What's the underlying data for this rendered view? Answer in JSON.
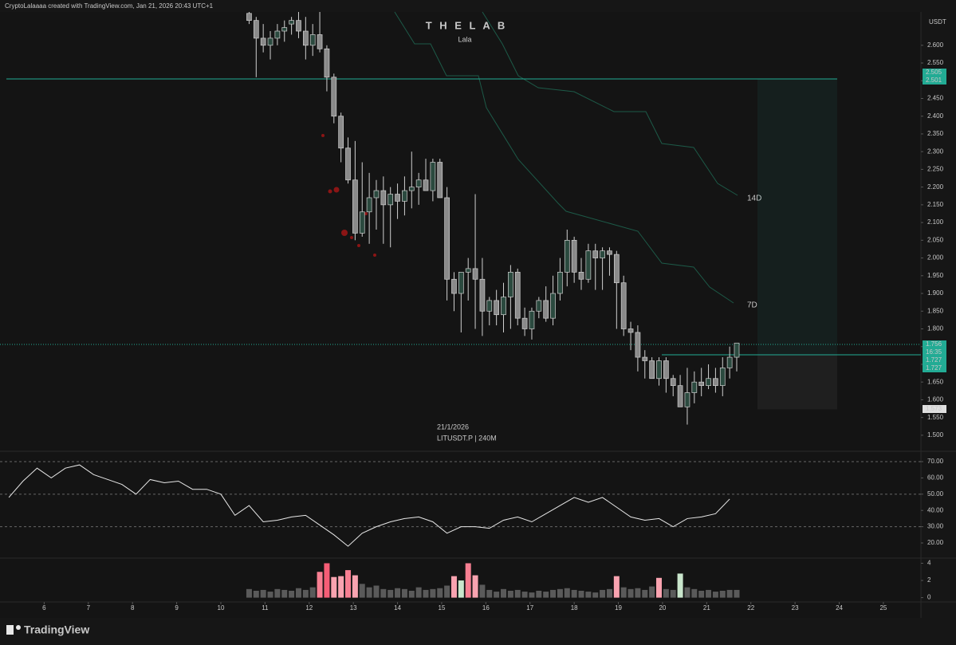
{
  "header": {
    "text": "CryptoLalaaaa created with TradingView.com, Jan 21, 2026 20:43 UTC+1"
  },
  "watermark": {
    "title": "T H E  L A B",
    "subtitle": "Lala"
  },
  "info": {
    "date": "21/1/2026",
    "symbol": "LITUSDT.P | 240M"
  },
  "footer": {
    "brand": "TradingView"
  },
  "drawings": {
    "long_label": "14D",
    "short_label": "7D",
    "countdown": "16:35"
  },
  "chart_data": [
    {
      "type": "candlestick",
      "currency": "USDT",
      "xlim": [
        5.0,
        25.85
      ],
      "ylim": [
        1.457,
        2.694
      ],
      "xticks": [
        6,
        7,
        8,
        9,
        10,
        11,
        12,
        13,
        14,
        15,
        16,
        17,
        18,
        19,
        20,
        21,
        22,
        23,
        24,
        25
      ],
      "yticks": [
        {
          "value": 1.5,
          "label": "1.500"
        },
        {
          "value": 1.55,
          "label": "1.550"
        },
        {
          "value": 1.6,
          "label": "1.600"
        },
        {
          "value": 1.65,
          "label": "1.650"
        },
        {
          "value": 1.7,
          "label": "1.700"
        },
        {
          "value": 1.75,
          "label": "1.750"
        },
        {
          "value": 1.8,
          "label": "1.800"
        },
        {
          "value": 1.85,
          "label": "1.850"
        },
        {
          "value": 1.9,
          "label": "1.900"
        },
        {
          "value": 1.95,
          "label": "1.950"
        },
        {
          "value": 2.0,
          "label": "2.000"
        },
        {
          "value": 2.05,
          "label": "2.050"
        },
        {
          "value": 2.1,
          "label": "2.100"
        },
        {
          "value": 2.15,
          "label": "2.150"
        },
        {
          "value": 2.2,
          "label": "2.200"
        },
        {
          "value": 2.25,
          "label": "2.250"
        },
        {
          "value": 2.3,
          "label": "2.300"
        },
        {
          "value": 2.35,
          "label": "2.350"
        },
        {
          "value": 2.4,
          "label": "2.400"
        },
        {
          "value": 2.45,
          "label": "2.450"
        },
        {
          "value": 2.5,
          "label": "2.500"
        },
        {
          "value": 2.55,
          "label": "2.550"
        },
        {
          "value": 2.6,
          "label": "2.600"
        }
      ],
      "up_color": "#2b4a3f",
      "down_color": "#8a8a8a",
      "wick_color": "#cfcfcf",
      "x": [
        10.64,
        10.8,
        10.96,
        11.12,
        11.28,
        11.44,
        11.6,
        11.76,
        11.92,
        12.08,
        12.24,
        12.4,
        12.56,
        12.72,
        12.88,
        13.04,
        13.2,
        13.36,
        13.52,
        13.68,
        13.84,
        14,
        14.16,
        14.32,
        14.48,
        14.64,
        14.8,
        14.96,
        15.12,
        15.28,
        15.44,
        15.6,
        15.76,
        15.92,
        16.08,
        16.24,
        16.4,
        16.56,
        16.72,
        16.88,
        17.04,
        17.2,
        17.36,
        17.52,
        17.68,
        17.84,
        18,
        18.16,
        18.32,
        18.48,
        18.64,
        18.8,
        18.96,
        19.12,
        19.28,
        19.44,
        19.6,
        19.76,
        19.92,
        20.08,
        20.24,
        20.4,
        20.56,
        20.72,
        20.88,
        21.04,
        21.2,
        21.36,
        21.52,
        21.68
      ],
      "open": [
        2.69,
        2.67,
        2.62,
        2.6,
        2.62,
        2.64,
        2.66,
        2.67,
        2.64,
        2.6,
        2.63,
        2.59,
        2.51,
        2.4,
        2.31,
        2.22,
        2.07,
        2.13,
        2.17,
        2.19,
        2.15,
        2.18,
        2.16,
        2.19,
        2.2,
        2.22,
        2.19,
        2.27,
        2.17,
        1.94,
        1.9,
        1.96,
        1.97,
        1.94,
        1.85,
        1.88,
        1.84,
        1.89,
        1.96,
        1.83,
        1.8,
        1.85,
        1.88,
        1.83,
        1.9,
        1.96,
        2.05,
        1.96,
        1.94,
        2.02,
        2.0,
        2.02,
        2.01,
        1.93,
        1.8,
        1.79,
        1.72,
        1.71,
        1.66,
        1.71,
        1.66,
        1.64,
        1.58,
        1.62,
        1.65,
        1.64,
        1.66,
        1.64,
        1.69,
        1.72
      ],
      "high": [
        2.7,
        2.68,
        2.66,
        2.64,
        2.66,
        2.67,
        2.68,
        2.7,
        2.68,
        2.66,
        2.7,
        2.6,
        2.52,
        2.41,
        2.34,
        2.33,
        2.27,
        2.24,
        2.22,
        2.23,
        2.2,
        2.21,
        2.23,
        2.3,
        2.24,
        2.28,
        2.28,
        2.28,
        2.2,
        1.96,
        1.96,
        2.0,
        2.18,
        2.0,
        1.89,
        1.91,
        1.93,
        1.98,
        1.97,
        1.86,
        1.86,
        1.89,
        1.92,
        1.95,
        2.0,
        2.08,
        2.06,
        2.0,
        2.04,
        2.04,
        2.03,
        2.03,
        2.02,
        1.95,
        1.82,
        1.81,
        1.74,
        1.72,
        1.72,
        1.72,
        1.67,
        1.67,
        1.69,
        1.68,
        1.69,
        1.7,
        1.69,
        1.72,
        1.75,
        1.76
      ],
      "low": [
        2.66,
        2.51,
        2.58,
        2.56,
        2.6,
        2.61,
        2.63,
        2.62,
        2.56,
        2.57,
        2.58,
        2.47,
        2.38,
        2.27,
        2.21,
        2.05,
        2.06,
        2.04,
        2.08,
        2.04,
        2.03,
        2.11,
        2.12,
        2.14,
        2.15,
        2.19,
        2.16,
        2.17,
        1.88,
        1.85,
        1.79,
        1.88,
        1.8,
        1.78,
        1.81,
        1.81,
        1.79,
        1.8,
        1.81,
        1.78,
        1.77,
        1.83,
        1.82,
        1.81,
        1.88,
        1.92,
        1.93,
        1.91,
        1.93,
        1.91,
        1.91,
        1.95,
        1.8,
        1.78,
        1.74,
        1.68,
        1.66,
        1.66,
        1.64,
        1.62,
        1.61,
        1.58,
        1.53,
        1.59,
        1.61,
        1.63,
        1.62,
        1.61,
        1.66,
        1.68
      ],
      "close": [
        2.67,
        2.62,
        2.6,
        2.62,
        2.64,
        2.65,
        2.67,
        2.64,
        2.6,
        2.63,
        2.59,
        2.51,
        2.4,
        2.31,
        2.22,
        2.07,
        2.13,
        2.17,
        2.19,
        2.15,
        2.18,
        2.16,
        2.19,
        2.2,
        2.22,
        2.19,
        2.27,
        2.17,
        1.94,
        1.9,
        1.96,
        1.97,
        1.94,
        1.85,
        1.88,
        1.84,
        1.89,
        1.96,
        1.83,
        1.8,
        1.85,
        1.88,
        1.83,
        1.9,
        1.96,
        2.05,
        1.96,
        1.94,
        2.02,
        2.0,
        2.02,
        2.01,
        1.93,
        1.8,
        1.79,
        1.72,
        1.71,
        1.66,
        1.71,
        1.66,
        1.64,
        1.58,
        1.62,
        1.65,
        1.64,
        1.66,
        1.64,
        1.69,
        1.72,
        1.76
      ],
      "price_tags": [
        {
          "value": 2.505,
          "label": "2.505",
          "color": "#22ab94"
        },
        {
          "value": 2.501,
          "label": "2.501",
          "color": "#22ab94"
        },
        {
          "value": 1.756,
          "label": "1.756",
          "color": "#22ab94"
        },
        {
          "value": 1.727,
          "label": "1.727",
          "color": "#22ab94"
        },
        {
          "value": 1.727,
          "label": "1.727",
          "color": "#22ab94"
        },
        {
          "value": 1.573,
          "label": "1.573",
          "color": "#e0e0e0"
        }
      ]
    },
    {
      "type": "line",
      "xlim": [
        5.0,
        25.85
      ],
      "ylim": [
        10.7,
        75.4
      ],
      "yticks": [
        {
          "value": 20,
          "label": "20.00"
        },
        {
          "value": 30,
          "label": "30.00"
        },
        {
          "value": 40,
          "label": "40.00"
        },
        {
          "value": 50,
          "label": "50.00"
        },
        {
          "value": 60,
          "label": "60.00"
        },
        {
          "value": 70,
          "label": "70.00"
        }
      ],
      "bands": [
        30,
        50,
        70
      ],
      "color": "#e8e8e8",
      "x": [
        5.2,
        5.52,
        5.84,
        6.16,
        6.48,
        6.8,
        7.12,
        7.44,
        7.76,
        8.08,
        8.4,
        8.72,
        9.04,
        9.36,
        9.68,
        10,
        10.32,
        10.64,
        10.96,
        11.28,
        11.6,
        11.92,
        12.24,
        12.56,
        12.88,
        13.2,
        13.52,
        13.84,
        14.16,
        14.48,
        14.8,
        15.12,
        15.44,
        15.76,
        16.08,
        16.4,
        16.72,
        17.04,
        17.36,
        17.68,
        18,
        18.32,
        18.64,
        18.96,
        19.28,
        19.6,
        19.92,
        20.24,
        20.56,
        20.88,
        21.2,
        21.52
      ],
      "values": [
        48,
        58,
        66,
        60,
        66,
        68,
        62,
        59,
        56,
        50,
        59,
        57,
        58,
        53,
        53,
        50,
        37,
        43,
        33,
        34,
        36,
        37,
        31,
        25,
        18,
        26,
        30,
        33,
        35,
        36,
        33,
        26,
        30,
        30,
        29,
        34,
        36,
        33,
        38,
        43,
        48,
        45,
        48,
        42,
        36,
        34,
        35,
        30,
        35,
        36,
        38,
        47
      ]
    },
    {
      "type": "bar",
      "xlim": [
        5.0,
        25.85
      ],
      "ylim": [
        -0.5,
        4.6
      ],
      "yticks": [
        0,
        2,
        4
      ],
      "x": [
        10.64,
        10.8,
        10.96,
        11.12,
        11.28,
        11.44,
        11.6,
        11.76,
        11.92,
        12.08,
        12.24,
        12.4,
        12.56,
        12.72,
        12.88,
        13.04,
        13.2,
        13.36,
        13.52,
        13.68,
        13.84,
        14,
        14.16,
        14.32,
        14.48,
        14.64,
        14.8,
        14.96,
        15.12,
        15.28,
        15.44,
        15.6,
        15.76,
        15.92,
        16.08,
        16.24,
        16.4,
        16.56,
        16.72,
        16.88,
        17.04,
        17.2,
        17.36,
        17.52,
        17.68,
        17.84,
        18,
        18.16,
        18.32,
        18.48,
        18.64,
        18.8,
        18.96,
        19.12,
        19.28,
        19.44,
        19.6,
        19.76,
        19.92,
        20.08,
        20.24,
        20.4,
        20.56,
        20.72,
        20.88,
        21.04,
        21.2,
        21.36,
        21.52,
        21.68
      ],
      "values": [
        1.0,
        0.8,
        0.9,
        0.7,
        1.0,
        0.9,
        0.8,
        1.1,
        0.9,
        1.2,
        3.0,
        4.0,
        2.4,
        2.5,
        3.2,
        2.6,
        1.6,
        1.2,
        1.4,
        1.0,
        0.9,
        1.1,
        1.0,
        0.8,
        1.2,
        0.9,
        1.0,
        1.1,
        1.4,
        2.5,
        2.0,
        4.0,
        2.6,
        1.5,
        0.9,
        0.7,
        1.0,
        0.8,
        0.9,
        0.7,
        0.6,
        0.8,
        0.7,
        0.9,
        1.0,
        1.1,
        0.9,
        0.8,
        0.7,
        0.6,
        0.9,
        1.0,
        2.5,
        1.2,
        1.0,
        1.1,
        0.9,
        1.3,
        2.3,
        1.0,
        0.9,
        2.8,
        1.2,
        1.0,
        0.8,
        0.9,
        0.7,
        0.8,
        0.9,
        0.9
      ],
      "colors": [
        "#5a5a5a",
        "#5a5a5a",
        "#5a5a5a",
        "#5a5a5a",
        "#5a5a5a",
        "#5a5a5a",
        "#5a5a5a",
        "#5a5a5a",
        "#5a5a5a",
        "#5a5a5a",
        "#f77f92",
        "#f55d76",
        "#f9a3b0",
        "#f9a3b0",
        "#f77f92",
        "#f9a3b0",
        "#5a5a5a",
        "#5a5a5a",
        "#5a5a5a",
        "#5a5a5a",
        "#5a5a5a",
        "#5a5a5a",
        "#5a5a5a",
        "#5a5a5a",
        "#5a5a5a",
        "#5a5a5a",
        "#5a5a5a",
        "#5a5a5a",
        "#5a5a5a",
        "#f9a3b0",
        "#c9e6cc",
        "#f77f92",
        "#f9a3b0",
        "#5a5a5a",
        "#5a5a5a",
        "#5a5a5a",
        "#5a5a5a",
        "#5a5a5a",
        "#5a5a5a",
        "#5a5a5a",
        "#5a5a5a",
        "#5a5a5a",
        "#5a5a5a",
        "#5a5a5a",
        "#5a5a5a",
        "#5a5a5a",
        "#5a5a5a",
        "#5a5a5a",
        "#5a5a5a",
        "#5a5a5a",
        "#5a5a5a",
        "#5a5a5a",
        "#f9a3b0",
        "#5a5a5a",
        "#5a5a5a",
        "#5a5a5a",
        "#5a5a5a",
        "#5a5a5a",
        "#f9a3b0",
        "#5a5a5a",
        "#5a5a5a",
        "#c9e6cc",
        "#5a5a5a",
        "#5a5a5a",
        "#5a5a5a",
        "#5a5a5a",
        "#5a5a5a",
        "#5a5a5a",
        "#5a5a5a",
        "#5a5a5a"
      ]
    }
  ]
}
